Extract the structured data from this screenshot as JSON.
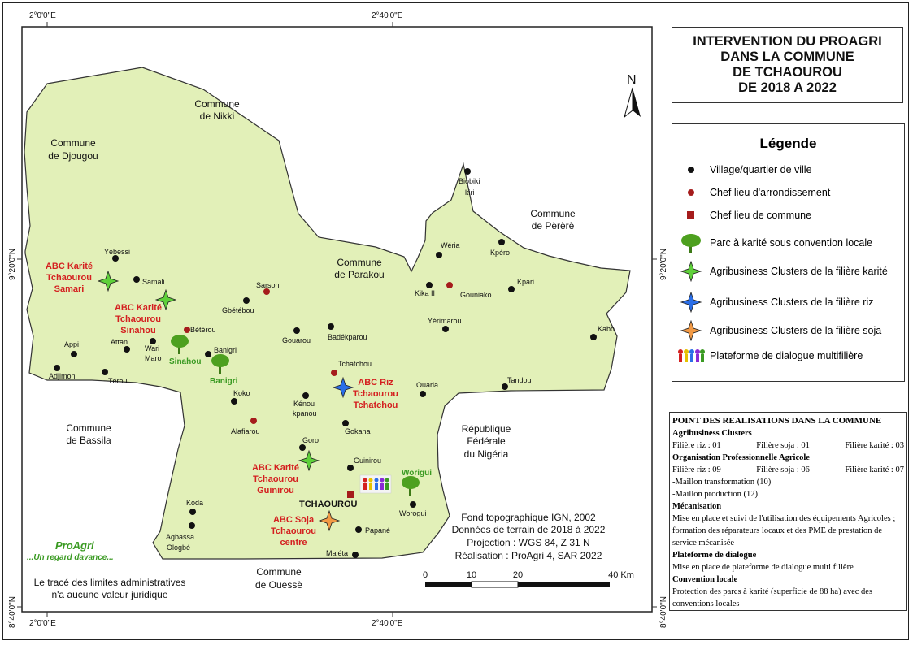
{
  "title": {
    "lines": [
      "INTERVENTION DU PROAGRI",
      "DANS LA COMMUNE",
      "DE TCHAOUROU",
      "DE 2018 A 2022"
    ]
  },
  "north_arrow": {
    "label": "N"
  },
  "graticule": {
    "top_left": "2°0'0\"E",
    "top_mid": "2°40'0\"E",
    "bottom_left": "2°0'0\"E",
    "bottom_mid": "2°40'0\"E",
    "left_upper": "9°20'0\"N",
    "left_lower": "8°40'0\"N",
    "right_upper": "9°20'0\"N",
    "right_lower": "8°40'0\"N"
  },
  "neighbors": {
    "nikki": [
      "Commune",
      "de Nikki"
    ],
    "djougou": [
      "Commune",
      "de Djougou"
    ],
    "parakou": [
      "Commune",
      "de Parakou"
    ],
    "perere": [
      "Commune",
      "de Pèrèrè"
    ],
    "bassila": [
      "Commune",
      "de Bassila"
    ],
    "ouesse": [
      "Commune",
      "de Ouessè"
    ],
    "nigeria": [
      "République",
      "Fédérale",
      "du Nigéria"
    ]
  },
  "villages": [
    "Yébessi",
    "Samali",
    "Sarson",
    "Gbétébou",
    "Bétérou",
    "Attan",
    "Wari",
    "Maro",
    "Appi",
    "Adjimon",
    "Térou",
    "Banigri",
    "Gouarou",
    "Badékparou",
    "Tchatchou",
    "Koko",
    "Kénou",
    "kpanou",
    "Alafiarou",
    "Gokana",
    "Goro",
    "Guinirou",
    "Worogui",
    "Papané",
    "Maléta",
    "Koda",
    "Agbassa",
    "Ologbé",
    "Biobiki",
    "kiri",
    "Wéria",
    "Kpéro",
    "Kika II",
    "Gouniako",
    "Kpari",
    "Yérimarou",
    "Kabo",
    "Ouaria",
    "Tandou"
  ],
  "chef_lieu_commune": "TCHAOUROU",
  "clusters": {
    "karite_samari": [
      "ABC Karité",
      "Tchaourou",
      "Samari"
    ],
    "karite_sinahou": [
      "ABC Karité",
      "Tchaourou",
      "Sinahou"
    ],
    "riz_tchatchou": [
      "ABC Riz",
      "Tchaourou",
      "Tchatchou"
    ],
    "karite_guinirou": [
      "ABC Karité",
      "Tchaourou",
      "Guinirou"
    ],
    "soja_centre": [
      "ABC Soja",
      "Tchaourou",
      "centre"
    ]
  },
  "parcs": [
    "Sinahou",
    "Banigri",
    "Worigui"
  ],
  "logo": {
    "name": "ProAgri",
    "tagline": "...Un regard davance..."
  },
  "source": {
    "lines": [
      "Fond topographique IGN, 2002",
      "Données de terrain de 2018 à 2022",
      "Projection : WGS 84, Z 31 N",
      "Réalisation : ProAgri 4, SAR 2022"
    ]
  },
  "scale": {
    "labels": [
      "0",
      "10",
      "20",
      "40 Km"
    ]
  },
  "disclaimer": [
    "Le tracé des limites administratives",
    "n'a aucune valeur juridique"
  ],
  "legend": {
    "title": "Légende",
    "items": [
      {
        "icon": "village-dot-icon",
        "label": "Village/quartier de ville"
      },
      {
        "icon": "chef-lieu-arrondissement-icon",
        "label": "Chef lieu d'arrondissement"
      },
      {
        "icon": "chef-lieu-commune-icon",
        "label": "Chef lieu de commune"
      },
      {
        "icon": "karite-tree-icon",
        "label": "Parc à karité sous convention locale"
      },
      {
        "icon": "green-star-icon",
        "label": "Agribusiness Clusters de la filière karité"
      },
      {
        "icon": "blue-star-icon",
        "label": "Agribusiness Clusters de la filière riz"
      },
      {
        "icon": "orange-star-icon",
        "label": "Agribusiness Clusters de la filière soja"
      },
      {
        "icon": "people-icon",
        "label": "Plateforme de dialogue multifilière"
      }
    ]
  },
  "realisations": {
    "title": "POINT DES REALISATIONS DANS LA COMMUNE",
    "abc_title": "Agribusiness Clusters",
    "abc_row": [
      "Filière riz : 01",
      "Filière soja : 01",
      "Filière karité : 03"
    ],
    "opa_title": "Organisation Professionnelle Agricole",
    "opa_row": [
      "Filière riz : 09",
      "Filière soja : 06",
      "Filière karité : 07"
    ],
    "opa_lines": [
      "-Maillon transformation (10)",
      "-Maillon production (12)"
    ],
    "meca_title": "Mécanisation",
    "meca_text": "Mise en place et suivi de l'utilisation des équipements Agricoles ; formation des réparateurs locaux et des PME de prestation de service mécanisée",
    "plat_title": "Plateforme de dialogue",
    "plat_text": "Mise en place de plateforme de dialogue multi filière",
    "conv_title": "Convention locale",
    "conv_text": "Protection des parcs à karité (superficie de 88 ha) avec des conventions locales"
  },
  "colors": {
    "commune_fill": "#e2f0b8",
    "village": "#111111",
    "arrondissement": "#a51c1c",
    "label_red": "#d42020",
    "label_green": "#3a9a22",
    "karite_star": "#5fd03a",
    "riz_star": "#2a6ee8",
    "soja_star": "#f29a45"
  }
}
